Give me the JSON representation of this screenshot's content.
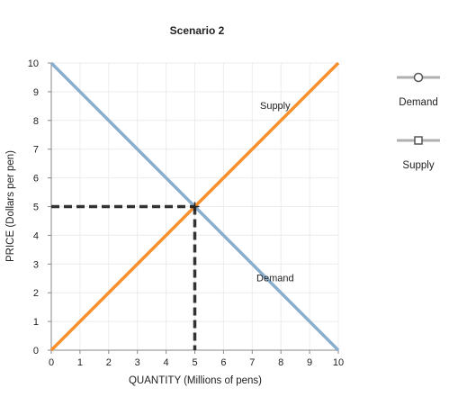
{
  "chart_data": {
    "type": "line",
    "title": "Scenario 2",
    "xlabel": "QUANTITY (Millions of pens)",
    "ylabel": "PRICE (Dollars per pen)",
    "xlim": [
      0,
      10
    ],
    "ylim": [
      0,
      10
    ],
    "x_ticks": [
      "0",
      "1",
      "2",
      "3",
      "4",
      "5",
      "6",
      "7",
      "8",
      "9",
      "10"
    ],
    "y_ticks": [
      "0",
      "1",
      "2",
      "3",
      "4",
      "5",
      "6",
      "7",
      "8",
      "9",
      "10"
    ],
    "grid": true,
    "series": [
      {
        "name": "Demand",
        "color": "#8aaecd",
        "marker": "circle",
        "x": [
          0,
          10
        ],
        "y": [
          10,
          0
        ]
      },
      {
        "name": "Supply",
        "color": "#f7902d",
        "marker": "square",
        "x": [
          0,
          10
        ],
        "y": [
          0,
          10
        ]
      }
    ],
    "equilibrium": {
      "x": 5,
      "y": 5,
      "style": "dashed",
      "color": "#333333"
    },
    "annotations": [
      {
        "text": "Supply",
        "x": 7.8,
        "y": 8.4
      },
      {
        "text": "Demand",
        "x": 7.8,
        "y": 2.4
      }
    ],
    "legend": {
      "position": "right",
      "items": [
        {
          "label": "Demand",
          "marker": "circle",
          "line_color": "#b0b0b0",
          "marker_color": "#555555"
        },
        {
          "label": "Supply",
          "marker": "square",
          "line_color": "#b0b0b0",
          "marker_color": "#555555"
        }
      ]
    }
  }
}
